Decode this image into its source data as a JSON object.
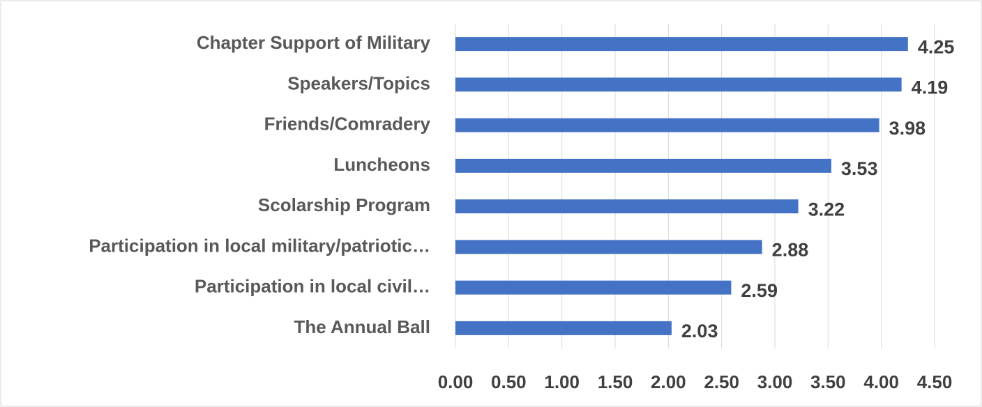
{
  "chart_data": {
    "type": "barh",
    "categories": [
      "Chapter Support of Military",
      "Speakers/Topics",
      "Friends/Comradery",
      "Luncheons",
      "Scolarship Program",
      "Participation in local military/patriotic…",
      "Participation in local civil…",
      "The Annual Ball"
    ],
    "values": [
      4.25,
      4.19,
      3.98,
      3.53,
      3.22,
      2.88,
      2.59,
      2.03
    ],
    "color": "#4472c4",
    "xlim": [
      0,
      4.5
    ],
    "xticks": [
      {
        "value": 0,
        "label": "0.00"
      },
      {
        "value": 0.5,
        "label": "0.50"
      },
      {
        "value": 1,
        "label": "1.00"
      },
      {
        "value": 1.5,
        "label": "1.50"
      },
      {
        "value": 2,
        "label": "2.00"
      },
      {
        "value": 2.5,
        "label": "2.50"
      },
      {
        "value": 3,
        "label": "3.00"
      },
      {
        "value": 3.5,
        "label": "3.50"
      },
      {
        "value": 4,
        "label": "4.00"
      },
      {
        "value": 4.5,
        "label": "4.50"
      }
    ],
    "grid": true
  }
}
